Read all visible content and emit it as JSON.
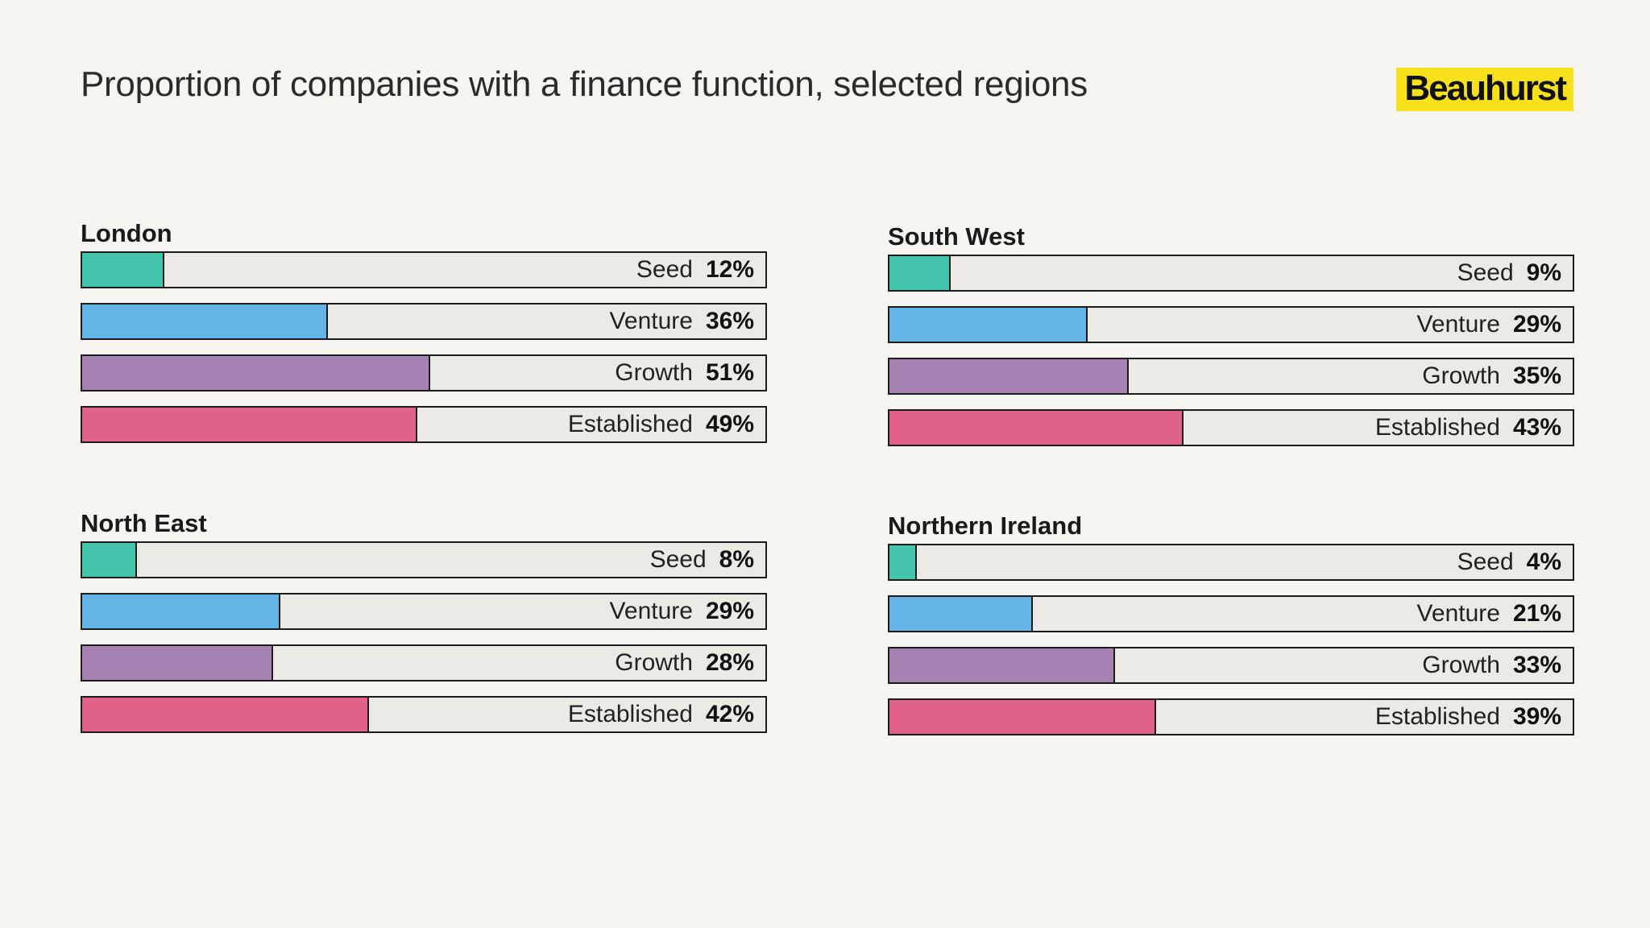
{
  "title": "Proportion of companies with a finance function, selected regions",
  "brand": "Beauhurst",
  "colors": {
    "Seed": "#43c4ab",
    "Venture": "#64b5e5",
    "Growth": "#a682b3",
    "Established": "#e06286",
    "track": "#ebeae4",
    "brand": "#f7e11b"
  },
  "chart_data": [
    {
      "type": "bar",
      "title": "London",
      "categories": [
        "Seed",
        "Venture",
        "Growth",
        "Established"
      ],
      "values": [
        12,
        36,
        51,
        49
      ],
      "labels": [
        "12%",
        "36%",
        "51%",
        "49%"
      ],
      "xlim": [
        0,
        100
      ]
    },
    {
      "type": "bar",
      "title": "South West",
      "categories": [
        "Seed",
        "Venture",
        "Growth",
        "Established"
      ],
      "values": [
        9,
        29,
        35,
        43
      ],
      "labels": [
        "9%",
        "29%",
        "35%",
        "43%"
      ],
      "xlim": [
        0,
        100
      ]
    },
    {
      "type": "bar",
      "title": "North East",
      "categories": [
        "Seed",
        "Venture",
        "Growth",
        "Established"
      ],
      "values": [
        8,
        29,
        28,
        42
      ],
      "labels": [
        "8%",
        "29%",
        "28%",
        "42%"
      ],
      "xlim": [
        0,
        100
      ]
    },
    {
      "type": "bar",
      "title": "Northern Ireland",
      "categories": [
        "Seed",
        "Venture",
        "Growth",
        "Established"
      ],
      "values": [
        4,
        21,
        33,
        39
      ],
      "labels": [
        "4%",
        "21%",
        "33%",
        "39%"
      ],
      "xlim": [
        0,
        100
      ]
    }
  ]
}
